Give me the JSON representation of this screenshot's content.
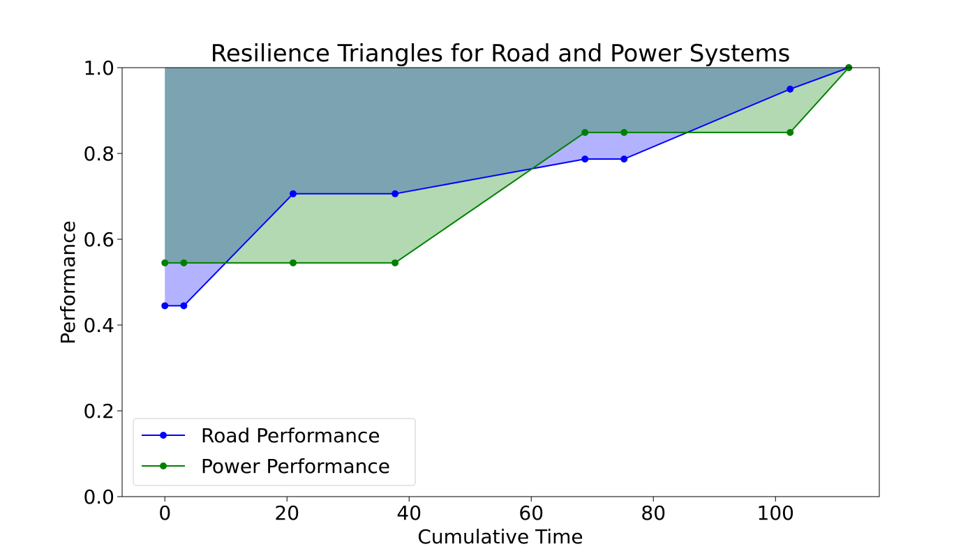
{
  "chart_data": {
    "type": "line",
    "title": "Resilience Triangles for Road and Power Systems",
    "xlabel": "Cumulative Time",
    "ylabel": "Performance",
    "xlim": [
      -7,
      117
    ],
    "ylim": [
      0,
      1
    ],
    "xticks": [
      0,
      20,
      40,
      60,
      80,
      100
    ],
    "yticks": [
      0.0,
      0.2,
      0.4,
      0.6,
      0.8,
      1.0
    ],
    "xtick_labels": [
      "0",
      "20",
      "40",
      "60",
      "80",
      100
    ],
    "ytick_labels": [
      "0.0",
      "0.2",
      "0.4",
      "0.6",
      "0.8",
      "1.0"
    ],
    "grid": false,
    "legend_position": "lower-left",
    "series": [
      {
        "name": "Road Performance",
        "color": "#0000ff",
        "x": [
          0,
          3.1,
          21,
          37.7,
          68.8,
          75.2,
          102.4,
          112
        ],
        "y": [
          0.445,
          0.445,
          0.706,
          0.706,
          0.787,
          0.787,
          0.95,
          1.0
        ]
      },
      {
        "name": "Power Performance",
        "color": "#008000",
        "x": [
          0,
          3.1,
          21,
          37.7,
          68.8,
          75.2,
          102.4,
          112
        ],
        "y": [
          0.545,
          0.545,
          0.545,
          0.545,
          0.849,
          0.849,
          0.849,
          1.0
        ]
      }
    ],
    "fills": {
      "road_to_full": "#9999ff",
      "power_to_full": "#80c080",
      "overlap": "#7ca1b1"
    }
  }
}
